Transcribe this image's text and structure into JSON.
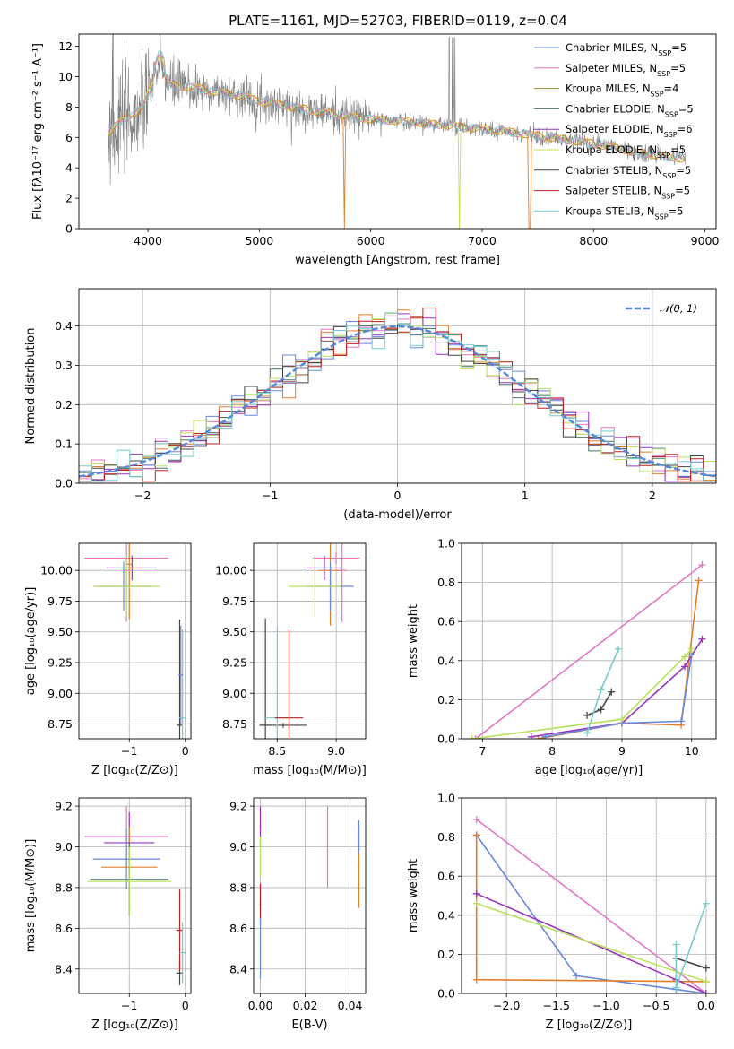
{
  "title": "PLATE=1161, MJD=52703, FIBERID=0119, z=0.04",
  "colors": {
    "chab_miles": "#6688dd",
    "salp_miles": "#e377c2",
    "krou_miles": "#9a8a2a",
    "chab_elodie": "#447766",
    "salp_elodie": "#9933bb",
    "krou_elodie": "#ccdd44",
    "chab_stelib": "#444444",
    "salp_stelib": "#bb2222",
    "krou_stelib": "#77cccc",
    "orange": "#e07f2a",
    "gray_spec": "#808080",
    "lime": "#b8e05a",
    "norm": "#5588dd"
  },
  "legend": [
    {
      "key": "chab_miles",
      "pre": "Chabrier MILES, N",
      "sub": "SSP",
      "post": "=5"
    },
    {
      "key": "salp_miles",
      "pre": "Salpeter MILES, N",
      "sub": "SSP",
      "post": "=5"
    },
    {
      "key": "krou_miles",
      "pre": "Kroupa MILES, N",
      "sub": "SSP",
      "post": "=4"
    },
    {
      "key": "chab_elodie",
      "pre": "Chabrier ELODIE, N",
      "sub": "SSP",
      "post": "=5"
    },
    {
      "key": "salp_elodie",
      "pre": "Salpeter ELODIE, N",
      "sub": "SSP",
      "post": "=6"
    },
    {
      "key": "krou_elodie",
      "pre": "Kroupa ELODIE, N",
      "sub": "SSP",
      "post": "=5"
    },
    {
      "key": "chab_stelib",
      "pre": "Chabrier STELIB, N",
      "sub": "SSP",
      "post": "=5"
    },
    {
      "key": "salp_stelib",
      "pre": "Salpeter STELIB, N",
      "sub": "SSP",
      "post": "=5"
    },
    {
      "key": "krou_stelib",
      "pre": "Kroupa STELIB, N",
      "sub": "SSP",
      "post": "=5"
    }
  ],
  "legend2": "𝒩(0, 1)",
  "chart_data": [
    {
      "id": "spectrum",
      "type": "line",
      "xlabel": "wavelength [Angstrom, rest frame]",
      "ylabel": "Flux [fλ10⁻¹⁷ erg cm⁻² s⁻¹ A⁻¹]",
      "xlim": [
        3380,
        9100
      ],
      "ylim": [
        0,
        12.8
      ],
      "xticks": [
        4000,
        5000,
        6000,
        7000,
        8000,
        9000
      ],
      "yticks": [
        0,
        2,
        4,
        6,
        8,
        10,
        12
      ],
      "continuum": [
        [
          3650,
          6.4
        ],
        [
          3800,
          7.3
        ],
        [
          3950,
          7.9
        ],
        [
          4100,
          10.8
        ],
        [
          4200,
          9.4
        ],
        [
          4400,
          9.3
        ],
        [
          4600,
          9.0
        ],
        [
          4800,
          8.8
        ],
        [
          5000,
          8.4
        ],
        [
          5300,
          8.0
        ],
        [
          5600,
          7.6
        ],
        [
          6000,
          7.2
        ],
        [
          6400,
          7.0
        ],
        [
          6800,
          6.7
        ],
        [
          7200,
          6.4
        ],
        [
          7600,
          6.0
        ],
        [
          8000,
          5.6
        ],
        [
          8400,
          5.0
        ],
        [
          8800,
          4.6
        ]
      ],
      "grid": false
    },
    {
      "id": "residuals",
      "type": "histogram",
      "xlabel": "(data-model)/error",
      "ylabel": "Normed distribution",
      "xlim": [
        -2.5,
        2.5
      ],
      "ylim": [
        0,
        0.495
      ],
      "xticks": [
        -2,
        -1,
        0,
        1,
        2
      ],
      "yticks": [
        0.0,
        0.1,
        0.2,
        0.3,
        0.4
      ],
      "bin_width": 0.1,
      "reference": {
        "name": "𝒩(0, 1)",
        "mean": 0,
        "sigma": 1
      },
      "grid": true
    },
    {
      "id": "age_vs_Z",
      "type": "errorbar",
      "xlabel": "Z [log₁₀(Z/Z⊙)]",
      "ylabel": "age  [log₁₀(age/yr)]",
      "xlim": [
        -1.9,
        0.1
      ],
      "ylim": [
        8.63,
        10.22
      ],
      "xticks": [
        -1,
        0
      ],
      "yticks": [
        8.75,
        9.0,
        9.25,
        9.5,
        9.75,
        10.0
      ],
      "grid": true
    },
    {
      "id": "age_vs_mass",
      "type": "errorbar",
      "xlabel": "mass [log₁₀(M/M⊙)]",
      "ylabel": "",
      "xlim": [
        8.3,
        9.25
      ],
      "ylim": [
        8.63,
        10.22
      ],
      "xticks": [
        8.5,
        9.0
      ],
      "yticks": [
        8.75,
        9.0,
        9.25,
        9.5,
        9.75,
        10.0
      ],
      "grid": true
    },
    {
      "id": "weight_vs_age",
      "type": "line",
      "xlabel": "age  [log₁₀(age/yr)]",
      "ylabel": "mass weight",
      "xlim": [
        6.7,
        10.35
      ],
      "ylim": [
        0,
        1
      ],
      "xticks": [
        7,
        8,
        9,
        10
      ],
      "yticks": [
        0.0,
        0.2,
        0.4,
        0.6,
        0.8,
        1.0
      ],
      "series": [
        {
          "key": "salp_miles",
          "points": [
            [
              6.9,
              0.0
            ],
            [
              10.15,
              0.89
            ]
          ]
        },
        {
          "key": "orange",
          "points": [
            [
              7.8,
              0.0
            ],
            [
              9.0,
              0.08
            ],
            [
              9.85,
              0.07
            ],
            [
              10.1,
              0.81
            ]
          ]
        },
        {
          "key": "salp_elodie",
          "points": [
            [
              7.7,
              0.01
            ],
            [
              9.0,
              0.08
            ],
            [
              9.9,
              0.37
            ],
            [
              10.15,
              0.51
            ]
          ]
        },
        {
          "key": "chab_miles",
          "points": [
            [
              7.9,
              0.01
            ],
            [
              9.0,
              0.08
            ],
            [
              9.85,
              0.09
            ],
            [
              10.0,
              0.43
            ]
          ]
        },
        {
          "key": "lime",
          "points": [
            [
              6.85,
              0.0
            ],
            [
              9.0,
              0.1
            ],
            [
              9.9,
              0.42
            ],
            [
              10.0,
              0.46
            ]
          ]
        },
        {
          "key": "chab_stelib",
          "points": [
            [
              8.5,
              0.12
            ],
            [
              8.7,
              0.15
            ],
            [
              8.85,
              0.24
            ]
          ]
        },
        {
          "key": "krou_stelib",
          "points": [
            [
              8.5,
              0.03
            ],
            [
              8.7,
              0.25
            ],
            [
              8.95,
              0.46
            ]
          ]
        }
      ],
      "grid": true
    },
    {
      "id": "mass_vs_Z",
      "type": "errorbar",
      "xlabel": "Z [log₁₀(Z/Z⊙)]",
      "ylabel": "mass [log₁₀(M/M⊙)]",
      "xlim": [
        -1.9,
        0.1
      ],
      "ylim": [
        8.28,
        9.24
      ],
      "xticks": [
        -1,
        0
      ],
      "yticks": [
        8.4,
        8.6,
        8.8,
        9.0,
        9.2
      ],
      "grid": true
    },
    {
      "id": "mass_vs_EBV",
      "type": "errorbar",
      "xlabel": "E(B-V)",
      "ylabel": "",
      "xlim": [
        -0.003,
        0.047
      ],
      "ylim": [
        8.28,
        9.24
      ],
      "xticks": [
        0.0,
        0.02,
        0.04
      ],
      "yticks": [
        8.4,
        8.6,
        8.8,
        9.0,
        9.2
      ],
      "grid": true
    },
    {
      "id": "weight_vs_Z",
      "type": "line",
      "xlabel": "Z [log₁₀(Z/Z⊙)]",
      "ylabel": "mass weight",
      "xlim": [
        -2.45,
        0.1
      ],
      "ylim": [
        0,
        1
      ],
      "xticks": [
        -2.0,
        -1.5,
        -1.0,
        -0.5,
        0.0
      ],
      "yticks": [
        0.0,
        0.2,
        0.4,
        0.6,
        0.8,
        1.0
      ],
      "series": [
        {
          "key": "salp_miles",
          "points": [
            [
              -2.3,
              0.89
            ],
            [
              0.0,
              0.0
            ]
          ]
        },
        {
          "key": "chab_miles",
          "points": [
            [
              -2.3,
              0.81
            ],
            [
              -1.3,
              0.09
            ],
            [
              -0.3,
              0.02
            ],
            [
              0.0,
              0.0
            ]
          ]
        },
        {
          "key": "orange",
          "points": [
            [
              -2.3,
              0.81
            ],
            [
              -2.3,
              0.07
            ],
            [
              0.0,
              0.06
            ]
          ]
        },
        {
          "key": "salp_elodie",
          "points": [
            [
              -2.3,
              0.51
            ],
            [
              -0.3,
              0.07
            ],
            [
              0.0,
              0.0
            ]
          ]
        },
        {
          "key": "lime",
          "points": [
            [
              -2.3,
              0.46
            ],
            [
              0.0,
              0.06
            ]
          ]
        },
        {
          "key": "chab_stelib",
          "points": [
            [
              -0.3,
              0.18
            ],
            [
              0.0,
              0.13
            ]
          ]
        },
        {
          "key": "krou_stelib",
          "points": [
            [
              -0.3,
              0.25
            ],
            [
              -0.3,
              0.03
            ],
            [
              0.0,
              0.46
            ]
          ]
        }
      ],
      "grid": true
    }
  ]
}
